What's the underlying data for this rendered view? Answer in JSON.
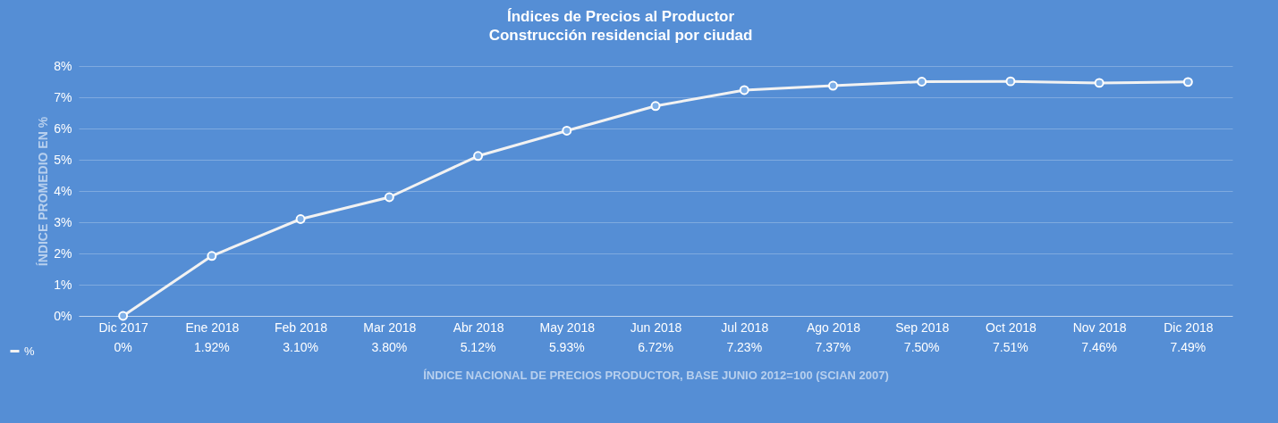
{
  "chart_data": {
    "type": "line",
    "title": "Índices de Precios al Productor",
    "subtitle": "Construcción residencial por ciudad",
    "ylabel": "ÍNDICE PROMEDIO EN %",
    "xlabel": "ÍNDICE NACIONAL DE PRECIOS PRODUCTOR, BASE JUNIO 2012=100 (SCIAN 2007)",
    "categories": [
      "Dic 2017",
      "Ene 2018",
      "Feb 2018",
      "Mar 2018",
      "Abr 2018",
      "May 2018",
      "Jun 2018",
      "Jul 2018",
      "Ago 2018",
      "Sep 2018",
      "Oct 2018",
      "Nov 2018",
      "Dic 2018"
    ],
    "series": [
      {
        "name": "%",
        "color": "#f2f2f2",
        "values": [
          0,
          1.92,
          3.1,
          3.8,
          5.12,
          5.93,
          6.72,
          7.23,
          7.37,
          7.5,
          7.51,
          7.46,
          7.49
        ],
        "value_labels": [
          "0%",
          "1.92%",
          "3.10%",
          "3.80%",
          "5.12%",
          "5.93%",
          "6.72%",
          "7.23%",
          "7.37%",
          "7.50%",
          "7.51%",
          "7.46%",
          "7.49%"
        ]
      }
    ],
    "ylim": [
      0,
      8
    ],
    "yticks": [
      {
        "value": 0,
        "label": "0%"
      },
      {
        "value": 1,
        "label": "1%"
      },
      {
        "value": 2,
        "label": "2%"
      },
      {
        "value": 3,
        "label": "3%"
      },
      {
        "value": 4,
        "label": "4%"
      },
      {
        "value": 5,
        "label": "5%"
      },
      {
        "value": 6,
        "label": "6%"
      },
      {
        "value": 7,
        "label": "7%"
      },
      {
        "value": 8,
        "label": "8%"
      }
    ],
    "grid": "y",
    "legend": "bottom left",
    "marker": "circle",
    "line_style": "solid"
  }
}
